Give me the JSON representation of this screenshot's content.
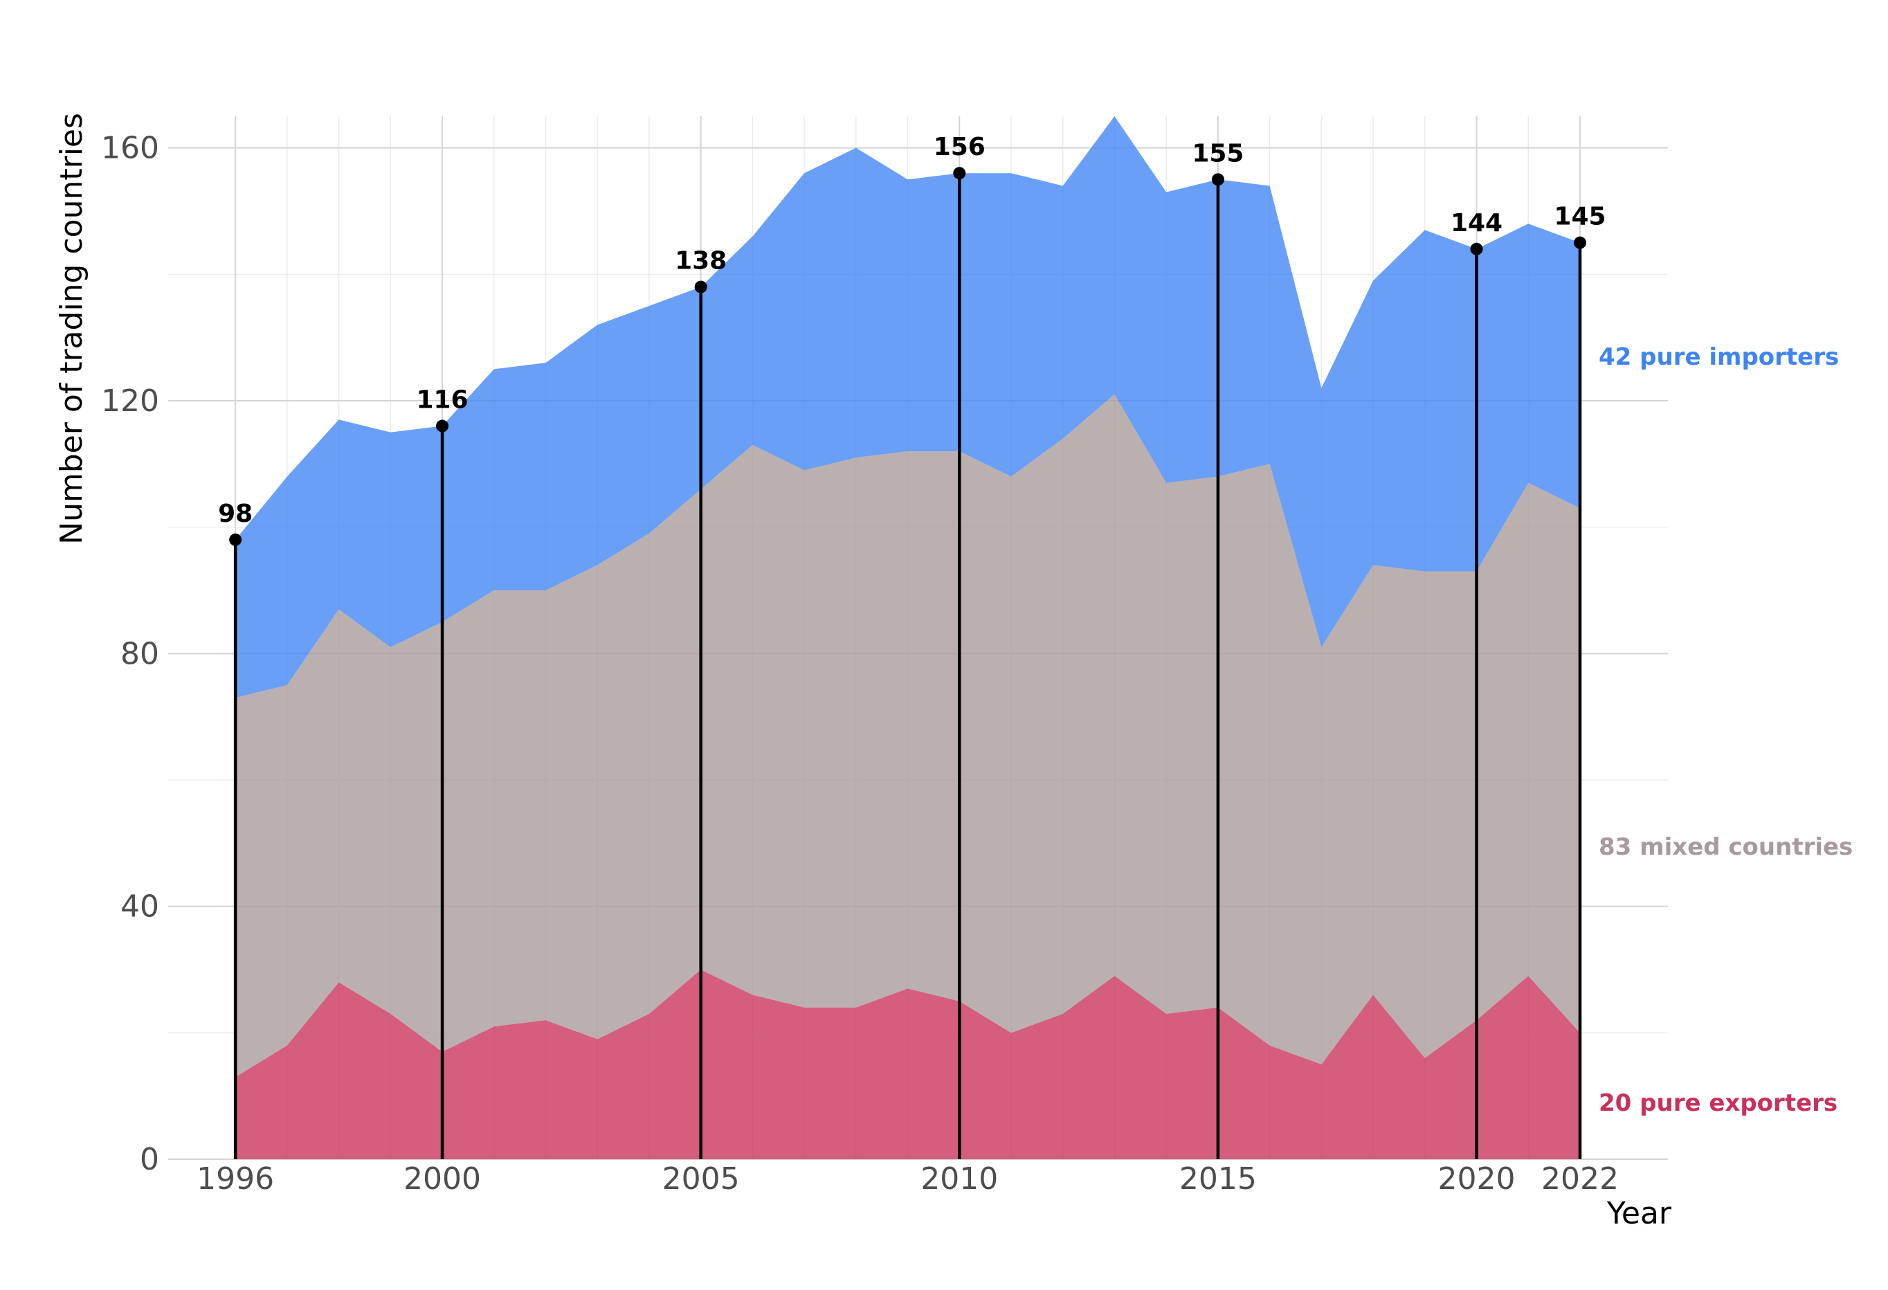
{
  "chart_data": {
    "type": "area",
    "stacked": true,
    "x": [
      1996,
      1997,
      1998,
      1999,
      2000,
      2001,
      2002,
      2003,
      2004,
      2005,
      2006,
      2007,
      2008,
      2009,
      2010,
      2011,
      2012,
      2013,
      2014,
      2015,
      2016,
      2017,
      2018,
      2019,
      2020,
      2021,
      2022
    ],
    "series": [
      {
        "key": "exporters",
        "values": [
          13,
          18,
          28,
          23,
          17,
          21,
          22,
          19,
          23,
          30,
          26,
          24,
          24,
          27,
          25,
          20,
          23,
          29,
          23,
          24,
          18,
          15,
          26,
          16,
          22,
          29,
          20
        ],
        "color": "#c9315a"
      },
      {
        "key": "mixed",
        "values": [
          60,
          57,
          59,
          58,
          68,
          69,
          68,
          75,
          76,
          76,
          87,
          85,
          87,
          85,
          87,
          88,
          91,
          92,
          84,
          84,
          92,
          66,
          68,
          77,
          71,
          78,
          83
        ],
        "color": "#a89a9a"
      },
      {
        "key": "importers",
        "values": [
          25,
          33,
          30,
          34,
          31,
          35,
          36,
          38,
          36,
          32,
          33,
          47,
          49,
          43,
          44,
          48,
          40,
          44,
          46,
          47,
          44,
          41,
          45,
          54,
          51,
          41,
          42
        ],
        "color": "#3f84f4"
      }
    ],
    "end_labels": [
      {
        "series": "importers",
        "text": "42 pure importers",
        "color": "#3f84f4"
      },
      {
        "series": "mixed",
        "text": "83 mixed countries",
        "color": "#a89a9a"
      },
      {
        "series": "exporters",
        "text": "20 pure exporters",
        "color": "#c9315a"
      }
    ],
    "highlighted_years": [
      {
        "x": 1996,
        "total": 98,
        "label": "98"
      },
      {
        "x": 2000,
        "total": 116,
        "label": "116"
      },
      {
        "x": 2005,
        "total": 138,
        "label": "138"
      },
      {
        "x": 2010,
        "total": 156,
        "label": "156"
      },
      {
        "x": 2015,
        "total": 155,
        "label": "155"
      },
      {
        "x": 2020,
        "total": 144,
        "label": "144"
      },
      {
        "x": 2022,
        "total": 145,
        "label": "145"
      }
    ],
    "xticks": [
      {
        "value": 1996,
        "label": "1996"
      },
      {
        "value": 2000,
        "label": "2000"
      },
      {
        "value": 2005,
        "label": "2005"
      },
      {
        "value": 2010,
        "label": "2010"
      },
      {
        "value": 2015,
        "label": "2015"
      },
      {
        "value": 2020,
        "label": "2020"
      },
      {
        "value": 2022,
        "label": "2022"
      }
    ],
    "yticks": [
      {
        "value": 0,
        "label": "0"
      },
      {
        "value": 40,
        "label": "40"
      },
      {
        "value": 80,
        "label": "80"
      },
      {
        "value": 120,
        "label": "120"
      },
      {
        "value": 160,
        "label": "160"
      }
    ],
    "xlabel": "Year",
    "ylabel": "Number of trading countries",
    "xlim": [
      1994.7,
      2023.7
    ],
    "ylim": [
      0,
      165
    ],
    "grid": true,
    "legend": "none"
  }
}
